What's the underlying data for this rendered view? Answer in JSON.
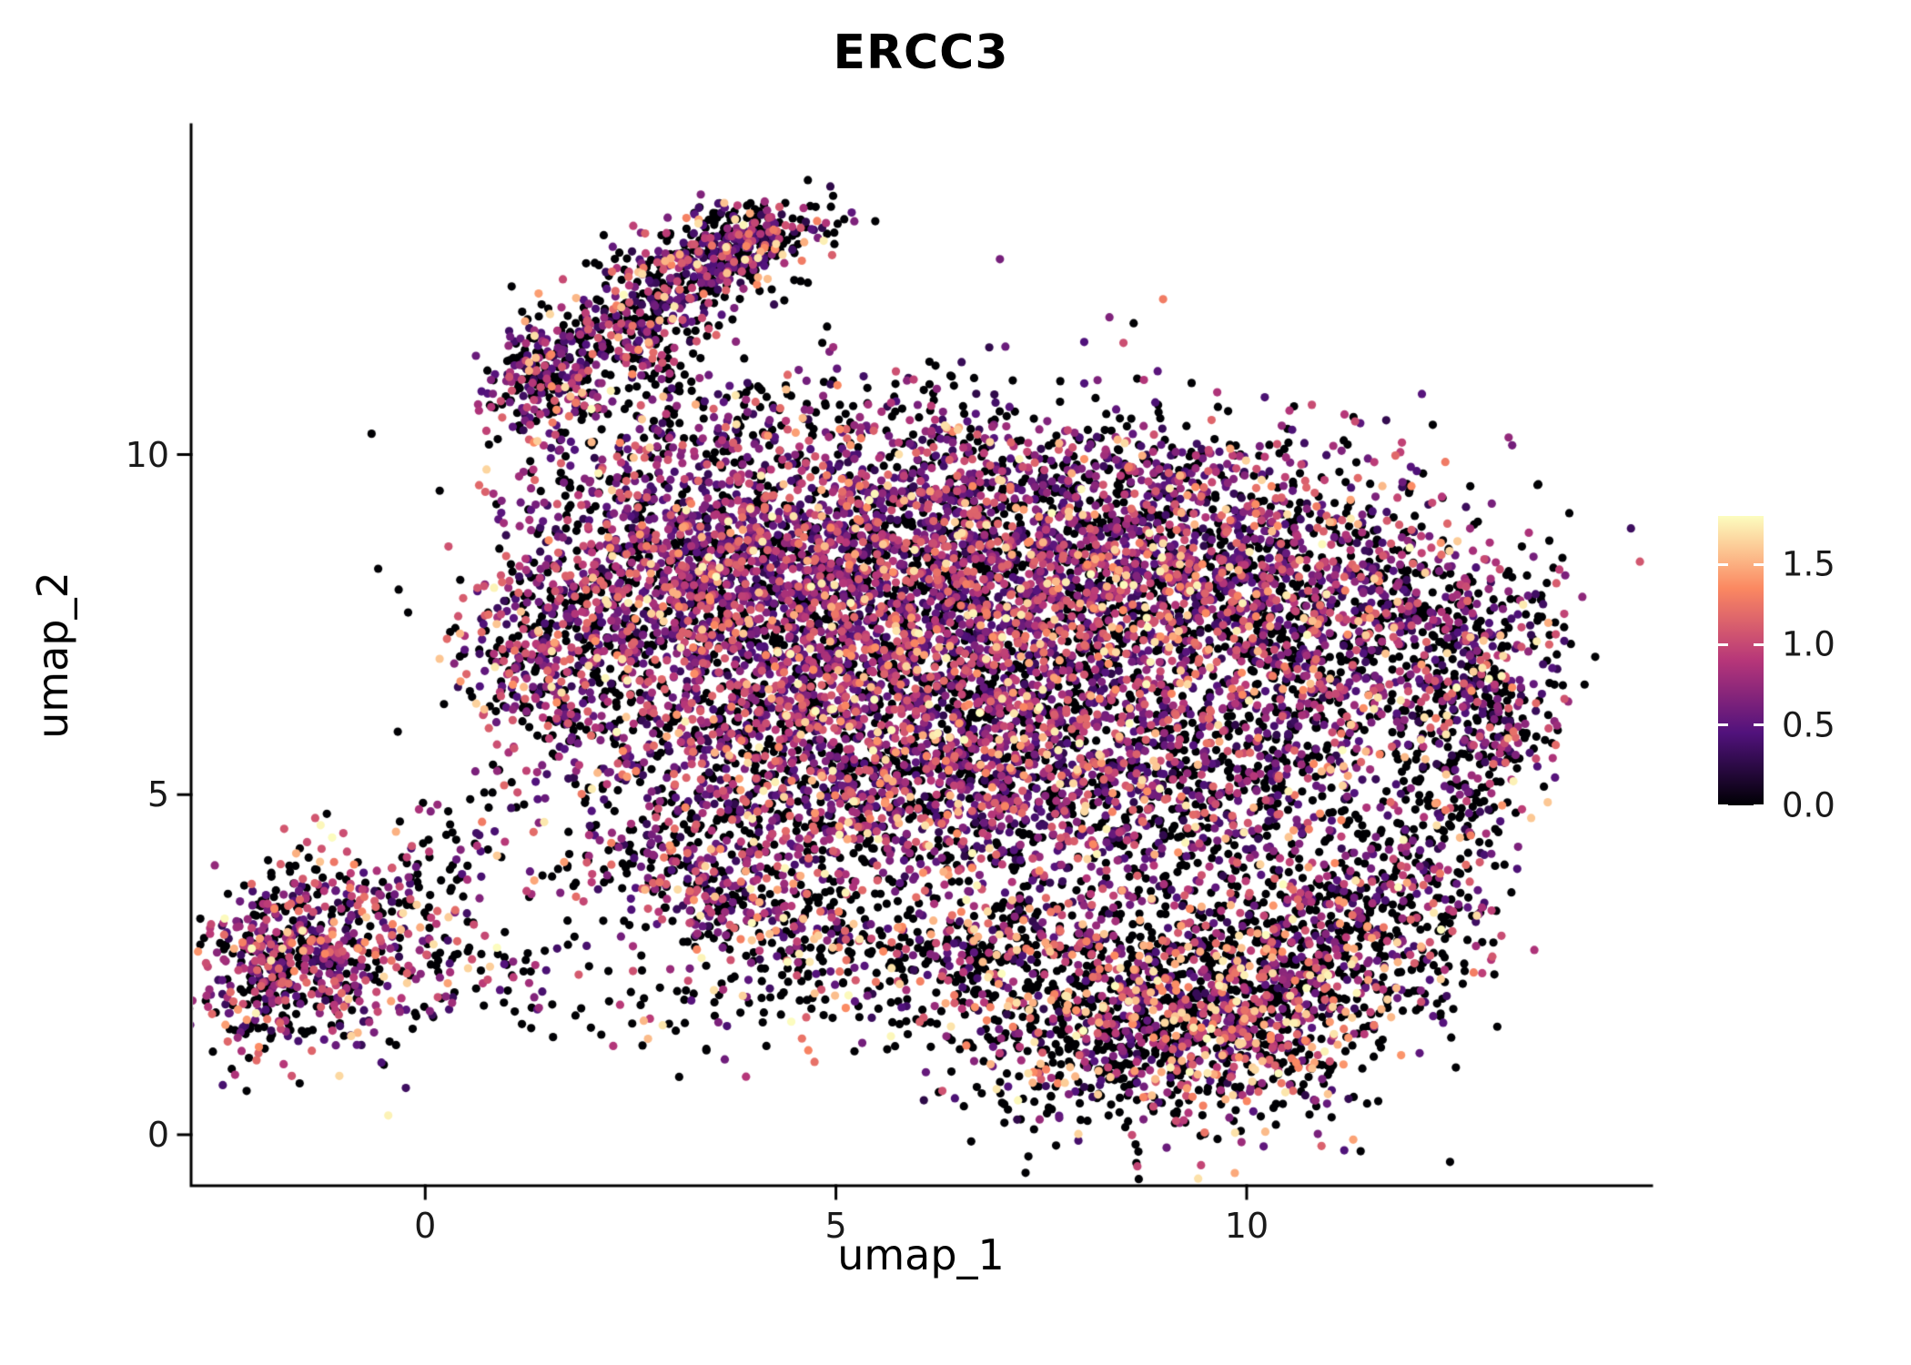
{
  "title": "ERCC3",
  "axes": {
    "x_label": "umap_1",
    "y_label": "umap_2",
    "x_ticks": [
      {
        "value": 0,
        "label": "0"
      },
      {
        "value": 5,
        "label": "5"
      },
      {
        "value": 10,
        "label": "10"
      }
    ],
    "y_ticks": [
      {
        "value": 0,
        "label": "0"
      },
      {
        "value": 5,
        "label": "5"
      },
      {
        "value": 10,
        "label": "10"
      }
    ]
  },
  "legend": {
    "ticks": [
      {
        "value": 0.0,
        "label": "0.0"
      },
      {
        "value": 0.5,
        "label": "0.5"
      },
      {
        "value": 1.0,
        "label": "1.0"
      },
      {
        "value": 1.5,
        "label": "1.5"
      }
    ]
  },
  "chart_data": {
    "type": "scatter",
    "title": "ERCC3",
    "xlabel": "umap_1",
    "ylabel": "umap_2",
    "grid": false,
    "legend_position": "right",
    "x_domain": [
      -2.85,
      14.93
    ],
    "y_domain": [
      -0.75,
      14.85
    ],
    "x_tick_values": [
      0,
      5,
      10
    ],
    "y_tick_values": [
      0,
      5,
      10
    ],
    "color_limits": [
      0,
      1.8
    ],
    "legend_tick_values": [
      0.0,
      0.5,
      1.0,
      1.5
    ],
    "colormap": {
      "name": "magma",
      "stops": [
        {
          "t": 0.0,
          "color": "#000004"
        },
        {
          "t": 0.25,
          "color": "#51127C"
        },
        {
          "t": 0.5,
          "color": "#B63679"
        },
        {
          "t": 0.75,
          "color": "#FB8861"
        },
        {
          "t": 1.0,
          "color": "#FCFDBF"
        }
      ]
    },
    "panel_background": "#FFFFFF",
    "point_radius": 4.6,
    "seed": 42,
    "expr_classes": {
      "low": [
        0.25,
        0.7
      ],
      "mid": [
        0.7,
        1.2
      ],
      "high": [
        1.2,
        1.8
      ]
    },
    "clusters": [
      {
        "name": "left-blob",
        "cx": -1.3,
        "cy": 2.75,
        "sx": 0.75,
        "sy": 0.72,
        "rot": -15,
        "n": 620,
        "expr": [
          0.36,
          0.26,
          0.28,
          0.1
        ]
      },
      {
        "name": "left-blob-edge",
        "cx": -2.0,
        "cy": 2.2,
        "sx": 0.3,
        "sy": 0.45,
        "rot": 0,
        "n": 110,
        "expr": [
          0.42,
          0.25,
          0.23,
          0.1
        ]
      },
      {
        "name": "left-bridge",
        "cx": 0.9,
        "cy": 2.4,
        "sx": 0.7,
        "sy": 0.4,
        "rot": 10,
        "n": 70,
        "expr": [
          0.6,
          0.18,
          0.14,
          0.08
        ]
      },
      {
        "name": "left-upper-sparse",
        "cx": 0.3,
        "cy": 4.2,
        "sx": 0.5,
        "sy": 0.5,
        "rot": 0,
        "n": 55,
        "expr": [
          0.55,
          0.2,
          0.17,
          0.08
        ]
      },
      {
        "name": "arm-knot",
        "cx": 1.45,
        "cy": 11.1,
        "sx": 0.33,
        "sy": 0.42,
        "rot": 0,
        "n": 210,
        "expr": [
          0.46,
          0.3,
          0.18,
          0.06
        ]
      },
      {
        "name": "arm-mid",
        "cx": 2.5,
        "cy": 11.9,
        "sx": 0.75,
        "sy": 0.45,
        "rot": 38,
        "n": 360,
        "expr": [
          0.44,
          0.3,
          0.2,
          0.06
        ]
      },
      {
        "name": "arm-top",
        "cx": 3.7,
        "cy": 13.0,
        "sx": 0.62,
        "sy": 0.33,
        "rot": 18,
        "n": 430,
        "expr": [
          0.46,
          0.27,
          0.2,
          0.07
        ]
      },
      {
        "name": "arm-trail",
        "cx": 3.1,
        "cy": 10.5,
        "sx": 0.9,
        "sy": 0.5,
        "rot": 15,
        "n": 120,
        "expr": [
          0.55,
          0.25,
          0.14,
          0.06
        ]
      },
      {
        "name": "top-sparse-bridge",
        "cx": 5.6,
        "cy": 10.6,
        "sx": 1.1,
        "sy": 0.45,
        "rot": 0,
        "n": 80,
        "expr": [
          0.62,
          0.22,
          0.11,
          0.05
        ]
      },
      {
        "name": "main-upper-left",
        "cx": 3.4,
        "cy": 8.3,
        "sx": 1.2,
        "sy": 1.05,
        "rot": 0,
        "n": 1500,
        "expr": [
          0.33,
          0.33,
          0.27,
          0.07
        ]
      },
      {
        "name": "main-left-edge",
        "cx": 1.5,
        "cy": 7.0,
        "sx": 0.55,
        "sy": 0.85,
        "rot": 0,
        "n": 380,
        "expr": [
          0.36,
          0.3,
          0.26,
          0.08
        ]
      },
      {
        "name": "main-upper-mid",
        "cx": 6.3,
        "cy": 8.2,
        "sx": 1.6,
        "sy": 1.1,
        "rot": 0,
        "n": 2000,
        "expr": [
          0.34,
          0.33,
          0.26,
          0.07
        ]
      },
      {
        "name": "main-top-fringe",
        "cx": 7.6,
        "cy": 9.8,
        "sx": 1.9,
        "sy": 0.4,
        "rot": 0,
        "n": 260,
        "expr": [
          0.42,
          0.32,
          0.21,
          0.05
        ]
      },
      {
        "name": "main-upper-right",
        "cx": 9.4,
        "cy": 8.2,
        "sx": 1.4,
        "sy": 1.0,
        "rot": -8,
        "n": 1550,
        "expr": [
          0.36,
          0.32,
          0.25,
          0.07
        ]
      },
      {
        "name": "main-right",
        "cx": 11.7,
        "cy": 7.3,
        "sx": 0.9,
        "sy": 1.05,
        "rot": -15,
        "n": 650,
        "expr": [
          0.46,
          0.27,
          0.2,
          0.07
        ]
      },
      {
        "name": "main-far-right",
        "cx": 12.9,
        "cy": 6.4,
        "sx": 0.42,
        "sy": 0.8,
        "rot": -10,
        "n": 220,
        "expr": [
          0.5,
          0.25,
          0.17,
          0.08
        ]
      },
      {
        "name": "main-mid-left",
        "cx": 4.6,
        "cy": 5.6,
        "sx": 1.35,
        "sy": 1.1,
        "rot": 0,
        "n": 1450,
        "expr": [
          0.36,
          0.3,
          0.26,
          0.08
        ]
      },
      {
        "name": "main-mid",
        "cx": 7.3,
        "cy": 5.4,
        "sx": 1.35,
        "sy": 1.1,
        "rot": 0,
        "n": 1250,
        "expr": [
          0.38,
          0.3,
          0.24,
          0.08
        ]
      },
      {
        "name": "main-mid-right",
        "cx": 9.6,
        "cy": 5.3,
        "sx": 1.1,
        "sy": 1.0,
        "rot": 0,
        "n": 620,
        "expr": [
          0.48,
          0.26,
          0.18,
          0.08
        ]
      },
      {
        "name": "left-strip",
        "cx": 3.6,
        "cy": 3.5,
        "sx": 1.0,
        "sy": 0.45,
        "rot": -22,
        "n": 330,
        "expr": [
          0.44,
          0.24,
          0.22,
          0.1
        ]
      },
      {
        "name": "bottom-strip",
        "cx": 6.7,
        "cy": 2.7,
        "sx": 1.5,
        "sy": 0.5,
        "rot": 6,
        "n": 480,
        "expr": [
          0.62,
          0.14,
          0.14,
          0.1
        ]
      },
      {
        "name": "bottom-mass",
        "cx": 8.5,
        "cy": 1.6,
        "sx": 1.25,
        "sy": 0.75,
        "rot": 0,
        "n": 880,
        "expr": [
          0.58,
          0.15,
          0.15,
          0.12
        ]
      },
      {
        "name": "bottom-right",
        "cx": 10.1,
        "cy": 2.1,
        "sx": 0.9,
        "sy": 0.85,
        "rot": 0,
        "n": 800,
        "expr": [
          0.5,
          0.17,
          0.18,
          0.15
        ]
      },
      {
        "name": "right-lower-arm",
        "cx": 11.6,
        "cy": 3.2,
        "sx": 0.75,
        "sy": 0.7,
        "rot": -30,
        "n": 380,
        "expr": [
          0.56,
          0.18,
          0.15,
          0.11
        ]
      },
      {
        "name": "right-arc",
        "cx": 12.55,
        "cy": 4.9,
        "sx": 0.42,
        "sy": 1.05,
        "rot": -18,
        "n": 210,
        "expr": [
          0.55,
          0.22,
          0.15,
          0.08
        ]
      },
      {
        "name": "below-sparse",
        "cx": 2.9,
        "cy": 1.9,
        "sx": 0.8,
        "sy": 0.4,
        "rot": 0,
        "n": 45,
        "expr": [
          0.65,
          0.15,
          0.12,
          0.08
        ]
      }
    ]
  }
}
